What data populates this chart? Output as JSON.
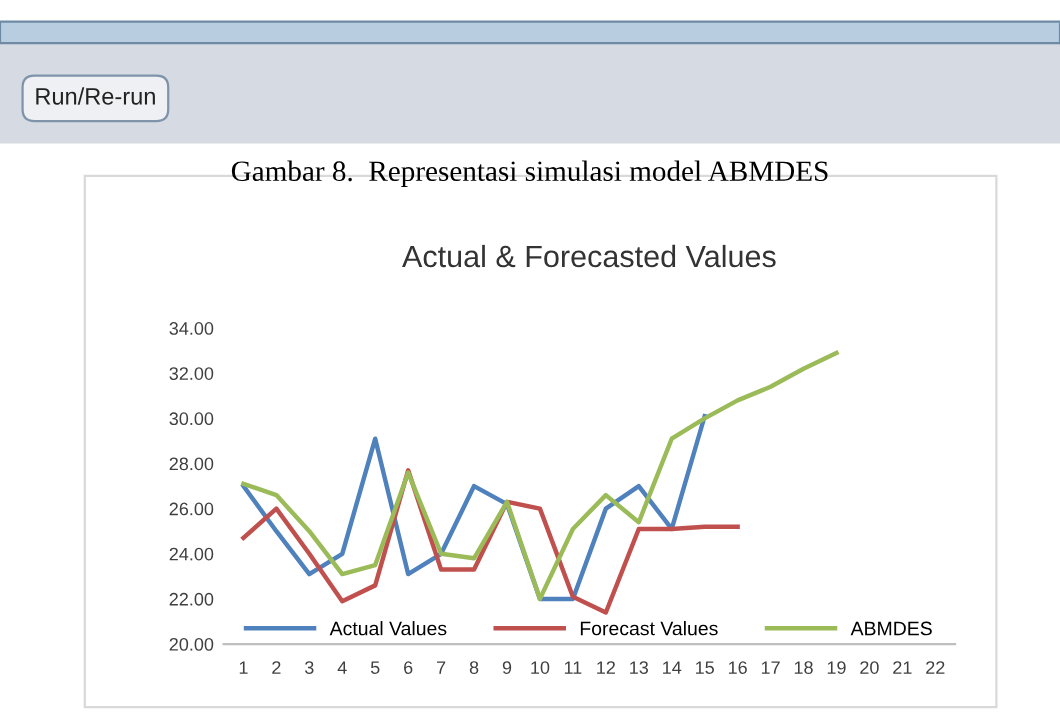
{
  "chart_data": {
    "type": "line",
    "title": "Actual & Forecasted Values",
    "annotations": [
      "Run/Re-run",
      "Gambar 8.  Representasi simulasi model ABMDES"
    ],
    "categories": [
      "1",
      "2",
      "3",
      "4",
      "5",
      "6",
      "7",
      "8",
      "9",
      "10",
      "11",
      "12",
      "13",
      "14",
      "15",
      "16",
      "17",
      "18",
      "19",
      "20",
      "21",
      "22"
    ],
    "series": [
      {
        "name": "Actual Values",
        "color": "#4f81bd",
        "values": [
          27.0,
          25.0,
          23.1,
          24.0,
          29.1,
          23.1,
          24.0,
          27.0,
          26.2,
          22.0,
          22.0,
          26.0,
          27.0,
          25.1,
          30.1,
          null,
          null,
          null,
          null,
          null,
          null,
          null
        ]
      },
      {
        "name": "Forecast Values",
        "color": "#c0504d",
        "values": [
          24.7,
          26.0,
          24.0,
          21.9,
          22.6,
          27.7,
          23.3,
          23.3,
          26.3,
          26.0,
          22.1,
          21.4,
          25.1,
          25.1,
          25.2,
          25.2,
          null,
          null,
          null,
          null,
          null,
          null
        ]
      },
      {
        "name": "ABMDES",
        "color": "#9bbb59",
        "values": [
          27.1,
          26.6,
          25.0,
          23.1,
          23.5,
          27.6,
          24.0,
          23.8,
          26.3,
          22.0,
          25.1,
          26.6,
          25.4,
          29.1,
          30.0,
          30.8,
          31.4,
          32.2,
          32.9,
          null,
          null,
          null
        ]
      }
    ],
    "ylim": [
      20,
      34
    ],
    "yticks": [
      {
        "value": 20,
        "label": "20.00"
      },
      {
        "value": 22,
        "label": "22.00"
      },
      {
        "value": 24,
        "label": "24.00"
      },
      {
        "value": 26,
        "label": "26.00"
      },
      {
        "value": 28,
        "label": "28.00"
      },
      {
        "value": 30,
        "label": "30.00"
      },
      {
        "value": 32,
        "label": "32.00"
      },
      {
        "value": 34,
        "label": "34.00"
      }
    ],
    "grid": false,
    "legend": "bottom",
    "marker": "none",
    "line_style": "solid"
  }
}
